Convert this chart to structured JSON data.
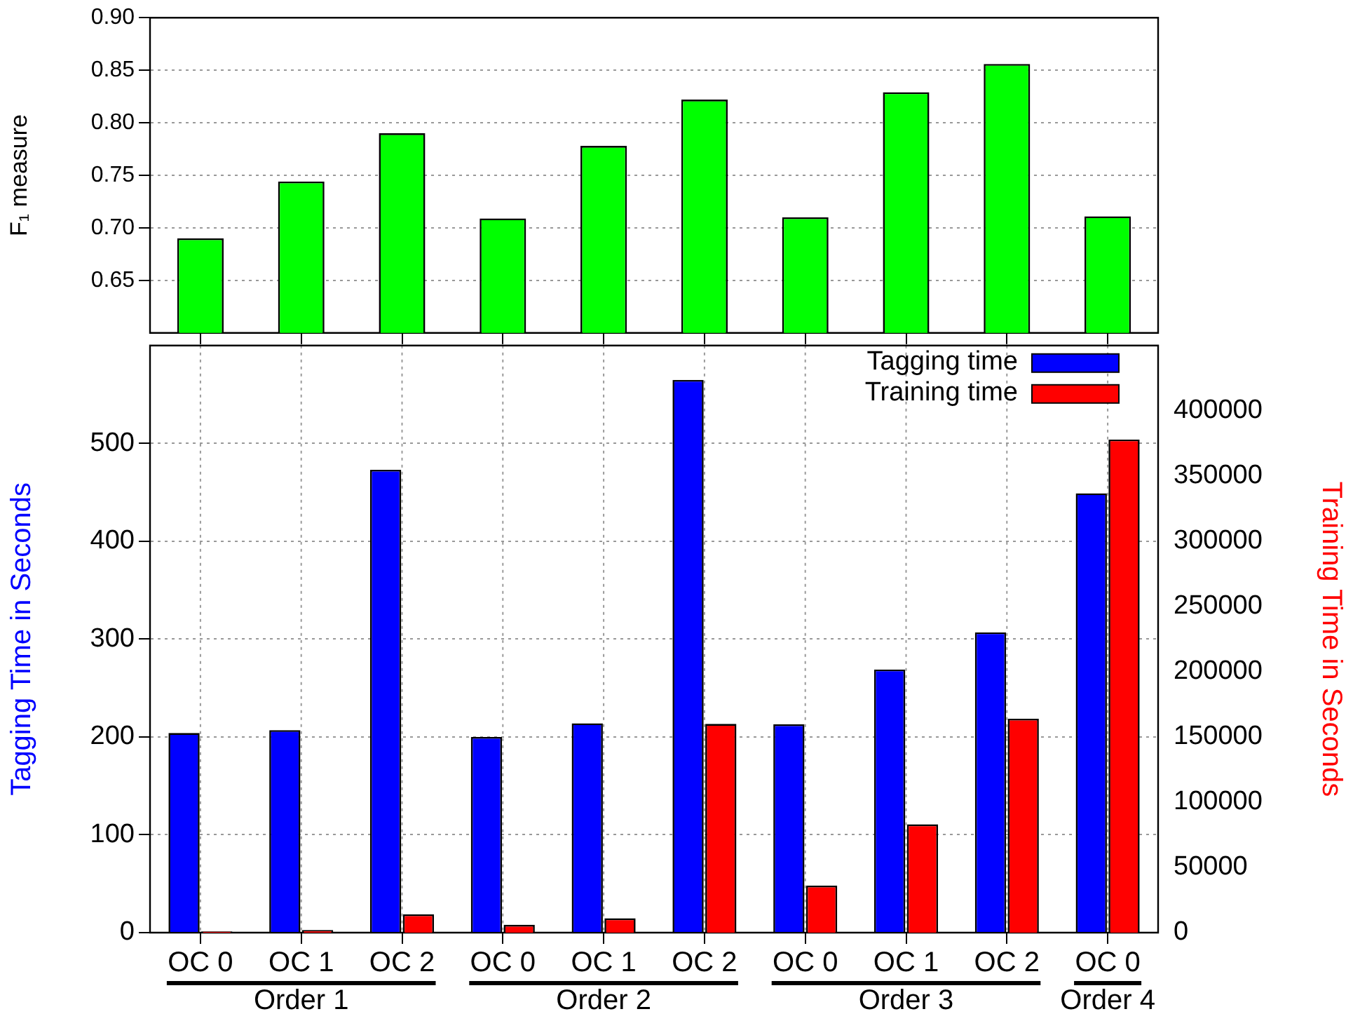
{
  "chart_data": [
    {
      "type": "bar",
      "ylabel": "F₁ measure",
      "categories": [
        null,
        null,
        null,
        null,
        null,
        null,
        null,
        null,
        null,
        null
      ],
      "values": [
        0.69,
        0.744,
        0.79,
        0.709,
        0.778,
        0.822,
        0.71,
        0.829,
        0.856,
        0.711
      ],
      "color": "#00ff00",
      "ylim": [
        0.6,
        0.9
      ],
      "yticks": [
        {
          "value": 0.65,
          "label": "0.65"
        },
        {
          "value": 0.7,
          "label": "0.70"
        },
        {
          "value": 0.75,
          "label": "0.75"
        },
        {
          "value": 0.8,
          "label": "0.80"
        },
        {
          "value": 0.85,
          "label": "0.85"
        },
        {
          "value": 0.9,
          "label": "0.90"
        }
      ],
      "grid": "y",
      "tick_labels": "y"
    },
    {
      "type": "bar",
      "ylabel": "Tagging Time in Seconds",
      "y2label": "Training Time in Seconds",
      "categories": [
        "OC 0",
        "OC 1",
        "OC 2",
        "OC 0",
        "OC 1",
        "OC 2",
        "OC 0",
        "OC 1",
        "OC 2",
        "OC 0"
      ],
      "series": [
        {
          "name": "Tagging time",
          "color": "#0000ff",
          "values": [
            204,
            207,
            473,
            200,
            214,
            565,
            213,
            269,
            307,
            449
          ]
        },
        {
          "name": "Training time",
          "color": "#ff0000",
          "axis": "y2",
          "values": [
            1000,
            2000,
            14000,
            6000,
            11000,
            160000,
            36000,
            83000,
            164000,
            378000
          ]
        }
      ],
      "ylim": [
        0,
        600
      ],
      "yticks": [
        0,
        100,
        200,
        300,
        400,
        500
      ],
      "y2lim": [
        0,
        450000
      ],
      "y2ticks": [
        0,
        50000,
        100000,
        150000,
        200000,
        250000,
        300000,
        350000,
        400000
      ],
      "grid": true,
      "legend": "top right",
      "annotations": [
        "Order 1",
        "Order 2",
        "Order 3",
        "Order 4"
      ]
    }
  ]
}
